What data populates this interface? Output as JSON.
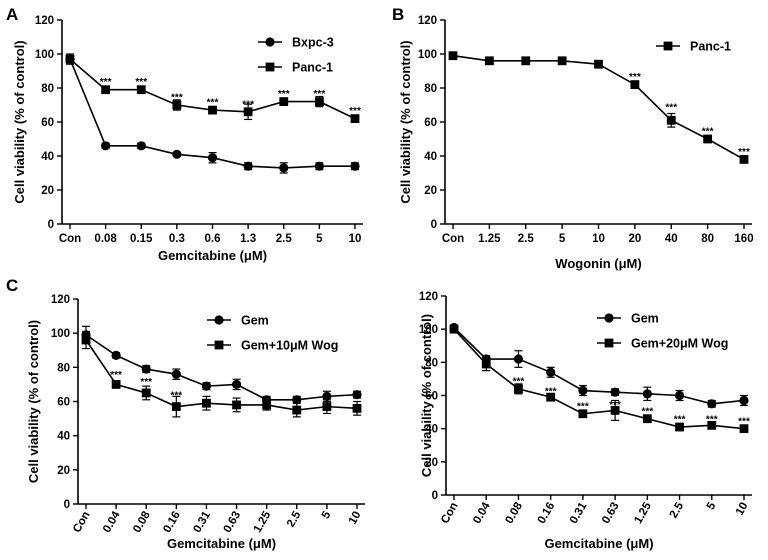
{
  "panels": [
    {
      "letter": "A"
    },
    {
      "letter": "B"
    },
    {
      "letter": "C"
    }
  ],
  "chart_data": [
    {
      "type": "line",
      "panel": "A",
      "title": "",
      "xlabel": "Gemcitabine (μM)",
      "ylabel": "Cell viability (% of control)",
      "ylim": [
        0,
        120
      ],
      "yticks": [
        0,
        20,
        40,
        60,
        80,
        100,
        120
      ],
      "categories": [
        "Con",
        "0.08",
        "0.15",
        "0.3",
        "0.6",
        "1.3",
        "2.5",
        "5",
        "10"
      ],
      "legend_position": "top-right",
      "series": [
        {
          "name": "Bxpc-3",
          "marker": "circle",
          "values": [
            97,
            46,
            46,
            41,
            39,
            34,
            33,
            34,
            34
          ],
          "errors": [
            2,
            1.5,
            1.5,
            1,
            3,
            2,
            3,
            2,
            2
          ]
        },
        {
          "name": "Panc-1",
          "marker": "square",
          "values": [
            97,
            79,
            79,
            70,
            67,
            66,
            72,
            72,
            62
          ],
          "errors": [
            3,
            1.5,
            1.5,
            3,
            2,
            4.5,
            2,
            3,
            2
          ]
        }
      ],
      "annotations": [
        "***",
        "***",
        "***",
        "***",
        "***",
        "***",
        "***",
        "***"
      ],
      "annotation_categories": [
        "0.08",
        "0.15",
        "0.3",
        "0.6",
        "1.3",
        "2.5",
        "5",
        "10"
      ],
      "annotation_values": [
        84,
        84,
        75,
        72,
        71,
        77,
        77,
        67
      ]
    },
    {
      "type": "line",
      "panel": "B",
      "title": "",
      "xlabel": "Wogonin (μM)",
      "ylabel": "Cell viability (% of control)",
      "ylim": [
        0,
        120
      ],
      "yticks": [
        0,
        20,
        40,
        60,
        80,
        100,
        120
      ],
      "categories": [
        "Con",
        "1.25",
        "2.5",
        "5",
        "10",
        "20",
        "40",
        "80",
        "160"
      ],
      "legend_position": "top-right",
      "series": [
        {
          "name": "Panc-1",
          "marker": "square",
          "values": [
            99,
            96,
            96,
            96,
            94,
            82,
            61,
            50,
            38
          ],
          "errors": [
            1,
            1,
            1,
            2,
            1,
            2,
            4,
            1.5,
            1
          ]
        }
      ],
      "annotations": [
        "***",
        "***",
        "***",
        "***"
      ],
      "annotation_categories": [
        "20",
        "40",
        "80",
        "160"
      ],
      "annotation_values": [
        87,
        69,
        55,
        43
      ]
    },
    {
      "type": "line",
      "panel": "C-left",
      "title": "",
      "xlabel": "Gemcitabine (μM)",
      "ylabel": "Cell viability (% of control)",
      "ylim": [
        0,
        120
      ],
      "yticks": [
        0,
        20,
        40,
        60,
        80,
        100,
        120
      ],
      "categories": [
        "Con",
        "0.04",
        "0.08",
        "0.16",
        "0.31",
        "0.63",
        "1.25",
        "2.5",
        "5",
        "10"
      ],
      "legend_position": "top-right",
      "series": [
        {
          "name": "Gem",
          "marker": "circle",
          "values": [
            99,
            87,
            79,
            76,
            69,
            70,
            61,
            61,
            63,
            64
          ],
          "errors": [
            5,
            1.5,
            2,
            3,
            2,
            3,
            2,
            2,
            3,
            2
          ]
        },
        {
          "name": "Gem+10μM Wog",
          "marker": "square",
          "values": [
            96,
            70,
            65,
            57,
            59,
            58,
            58,
            55,
            57,
            56
          ],
          "errors": [
            5,
            1.5,
            4,
            6,
            4,
            4,
            3,
            4,
            4,
            4
          ]
        }
      ],
      "annotations": [
        "***",
        "***",
        "***"
      ],
      "annotation_categories": [
        "0.04",
        "0.08",
        "0.16"
      ],
      "annotation_values": [
        76,
        72,
        64
      ]
    },
    {
      "type": "line",
      "panel": "C-right",
      "title": "",
      "xlabel": "Gemcitabine (μM)",
      "ylabel": "Cell viability (% of control)",
      "ylim": [
        0,
        120
      ],
      "yticks": [
        0,
        20,
        40,
        60,
        80,
        100,
        120
      ],
      "categories": [
        "Con",
        "0.04",
        "0.08",
        "0.16",
        "0.31",
        "0.63",
        "1.25",
        "2.5",
        "5",
        "10"
      ],
      "legend_position": "top-right",
      "series": [
        {
          "name": "Gem",
          "marker": "circle",
          "values": [
            101,
            82,
            82,
            74,
            63,
            62,
            61,
            60,
            55,
            57
          ],
          "errors": [
            1.5,
            2,
            5,
            3,
            3,
            2,
            4,
            3,
            2,
            3
          ]
        },
        {
          "name": "Gem+20μM Wog",
          "marker": "square",
          "values": [
            100,
            79,
            64,
            59,
            49,
            51,
            46,
            41,
            42,
            40
          ],
          "errors": [
            1.5,
            4,
            3,
            2,
            2,
            6,
            2,
            2,
            1.5,
            1.5
          ]
        }
      ],
      "annotations": [
        "***",
        "***",
        "***",
        "***",
        "***",
        "***",
        "***",
        "***"
      ],
      "annotation_categories": [
        "0.08",
        "0.16",
        "0.31",
        "0.63",
        "1.25",
        "2.5",
        "5",
        "10"
      ],
      "annotation_values": [
        69,
        63,
        54,
        55,
        51,
        46,
        46,
        45
      ]
    }
  ]
}
